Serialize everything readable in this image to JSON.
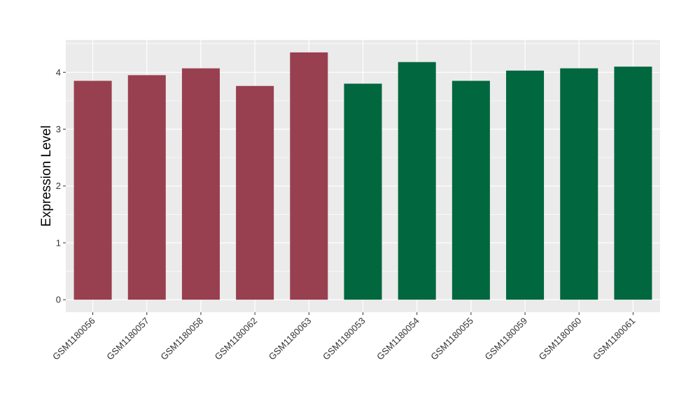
{
  "chart_data": {
    "type": "bar",
    "ylabel": "Expression Level",
    "xlabel": "",
    "ylim": [
      -0.22,
      4.57
    ],
    "yticks": [
      0,
      1,
      2,
      3,
      4
    ],
    "grid": true,
    "legend": "none",
    "categories": [
      "GSM1180056",
      "GSM1180057",
      "GSM1180058",
      "GSM1180062",
      "GSM1180063",
      "GSM1180053",
      "GSM1180054",
      "GSM1180055",
      "GSM1180059",
      "GSM1180060",
      "GSM1180061"
    ],
    "values": [
      3.85,
      3.95,
      4.07,
      3.76,
      4.35,
      3.8,
      4.18,
      3.85,
      4.03,
      4.07,
      4.1
    ],
    "colors": [
      "#98404F",
      "#98404F",
      "#98404F",
      "#98404F",
      "#98404F",
      "#00673F",
      "#00673F",
      "#00673F",
      "#00673F",
      "#00673F",
      "#00673F"
    ],
    "panel_color": "#EBEBEB",
    "grid_color": "#FFFFFF"
  }
}
